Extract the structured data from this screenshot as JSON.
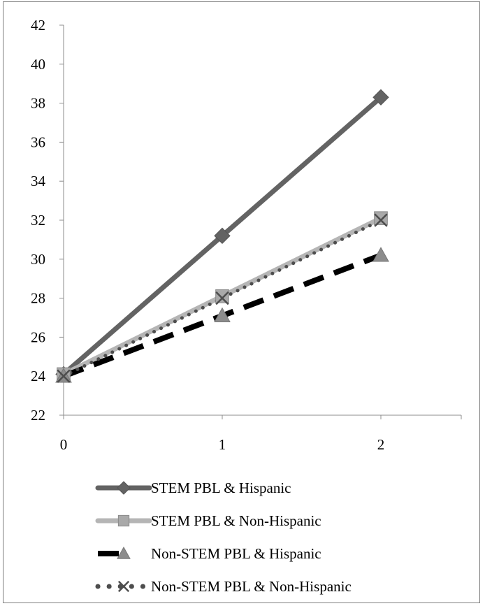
{
  "chart_data": {
    "type": "line",
    "title": "",
    "xlabel": "",
    "ylabel": "",
    "x": [
      0,
      1,
      2
    ],
    "x_tick_labels": [
      "0",
      "1",
      "2"
    ],
    "ylim": [
      22,
      42
    ],
    "y_ticks": [
      22,
      24,
      26,
      28,
      30,
      32,
      34,
      36,
      38,
      40,
      42
    ],
    "grid": false,
    "legend_position": "bottom",
    "series": [
      {
        "name": "STEM PBL & Hispanic",
        "values": [
          24.1,
          31.2,
          38.3
        ],
        "color": "#636363",
        "style": "solid",
        "marker": "diamond"
      },
      {
        "name": "STEM PBL & Non-Hispanic",
        "values": [
          24.1,
          28.1,
          32.1
        ],
        "color": "#b5b5b5",
        "style": "solid",
        "marker": "square"
      },
      {
        "name": "Non-STEM PBL & Hispanic",
        "values": [
          24.0,
          27.1,
          30.2
        ],
        "color": "#000000",
        "style": "dashed",
        "marker": "triangle"
      },
      {
        "name": "Non-STEM PBL & Non-Hispanic",
        "values": [
          24.0,
          28.0,
          32.0
        ],
        "color": "#4d4d4d",
        "style": "dotted",
        "marker": "x"
      }
    ]
  }
}
